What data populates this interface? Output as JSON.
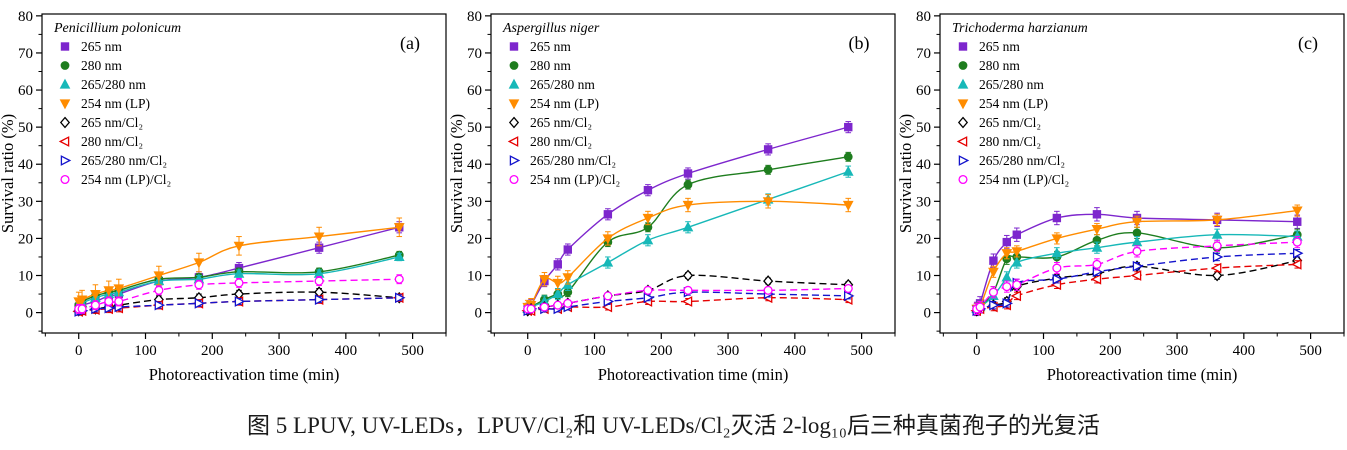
{
  "figure": {
    "caption": "图 5 LPUV, UV-LEDs，LPUV/Cl₂和 UV-LEDs/Cl₂灭活 2-log₁₀后三种真菌孢子的光复活"
  },
  "chart_data": [
    {
      "type": "scatter",
      "panel_label": "(a)",
      "legend_title": "Penicillium polonicum",
      "xlabel": "Photoreactivation time (min)",
      "ylabel": "Survival ratio (%)",
      "xlim": [
        -55,
        550
      ],
      "ylim": [
        -5.5,
        80.5
      ],
      "xticks": [
        0,
        100,
        200,
        300,
        400,
        500
      ],
      "yticks": [
        0,
        10,
        20,
        30,
        40,
        50,
        60,
        70,
        80
      ],
      "x_minor_step": 50,
      "y_minor_step": 5,
      "x": [
        0,
        5,
        25,
        45,
        60,
        120,
        180,
        240,
        360,
        480
      ],
      "series": [
        {
          "name": "265 nm",
          "color": "#7D26CD",
          "marker": "square",
          "line": "solid",
          "open": false,
          "err": 1.5,
          "values": [
            1.5,
            2,
            3,
            4.5,
            5,
            8.5,
            9.5,
            12,
            17.5,
            23
          ]
        },
        {
          "name": "280 nm",
          "color": "#1E7D1E",
          "marker": "circle",
          "line": "solid",
          "open": false,
          "err": 1.0,
          "values": [
            2,
            3,
            4.5,
            5.5,
            6,
            9,
            9.5,
            11,
            11,
            15.5
          ]
        },
        {
          "name": "265/280 nm",
          "color": "#17B8B8",
          "marker": "triangle-up",
          "line": "solid",
          "open": false,
          "err": 1.0,
          "values": [
            1.5,
            2.5,
            4,
            5,
            5.5,
            8.5,
            9,
            10.5,
            10.5,
            15
          ]
        },
        {
          "name": "254 nm (LP)",
          "color": "#FF8C00",
          "marker": "triangle-down",
          "line": "solid",
          "open": false,
          "err": 2.5,
          "values": [
            3,
            3.5,
            5,
            6,
            6.5,
            10,
            13.5,
            18,
            20.5,
            23
          ]
        },
        {
          "name": "265 nm/Cl₂",
          "color": "#000000",
          "marker": "diamond",
          "line": "dashed",
          "open": true,
          "err": 1.0,
          "values": [
            0.5,
            0.5,
            1,
            1.5,
            2,
            3.5,
            4,
            5,
            5.5,
            4
          ]
        },
        {
          "name": "280 nm/Cl₂",
          "color": "#E60000",
          "marker": "triangle-left",
          "line": "dashed",
          "open": true,
          "err": 1.0,
          "values": [
            0.3,
            0.5,
            0.8,
            1,
            1.2,
            2,
            2.5,
            3,
            3.5,
            4
          ]
        },
        {
          "name": "265/280 nm/Cl₂",
          "color": "#1414CC",
          "marker": "triangle-right",
          "line": "dashed",
          "open": true,
          "err": 0.8,
          "values": [
            0.3,
            0.5,
            1,
            1.2,
            1.5,
            2,
            2.5,
            3,
            3.5,
            4
          ]
        },
        {
          "name": "254 nm (LP)/Cl₂",
          "color": "#FF00FF",
          "marker": "circle",
          "line": "dashed",
          "open": true,
          "err": 1.2,
          "values": [
            1,
            1,
            2,
            3,
            3,
            6,
            7.5,
            8,
            8.5,
            9
          ]
        }
      ]
    },
    {
      "type": "scatter",
      "panel_label": "(b)",
      "legend_title": "Aspergillus niger",
      "xlabel": "Photoreactivation time (min)",
      "ylabel": "Survival ratio (%)",
      "xlim": [
        -55,
        550
      ],
      "ylim": [
        -5.5,
        80.5
      ],
      "xticks": [
        0,
        100,
        200,
        300,
        400,
        500
      ],
      "yticks": [
        0,
        10,
        20,
        30,
        40,
        50,
        60,
        70,
        80
      ],
      "x_minor_step": 50,
      "y_minor_step": 5,
      "x": [
        0,
        5,
        25,
        45,
        60,
        120,
        180,
        240,
        360,
        480
      ],
      "series": [
        {
          "name": "265 nm",
          "color": "#7D26CD",
          "marker": "square",
          "line": "solid",
          "open": false,
          "err": 1.5,
          "values": [
            1,
            2,
            8.5,
            13,
            17,
            26.5,
            33,
            37.5,
            44,
            50
          ]
        },
        {
          "name": "280 nm",
          "color": "#1E7D1E",
          "marker": "circle",
          "line": "solid",
          "open": false,
          "err": 1.2,
          "values": [
            1,
            1.5,
            3.5,
            5,
            5.5,
            19,
            23,
            34.5,
            38.5,
            42
          ]
        },
        {
          "name": "265/280 nm",
          "color": "#17B8B8",
          "marker": "triangle-up",
          "line": "solid",
          "open": false,
          "err": 1.5,
          "values": [
            1,
            1.5,
            3,
            5,
            7.5,
            13.5,
            19.5,
            23,
            30.5,
            38
          ]
        },
        {
          "name": "254 nm (LP)",
          "color": "#FF8C00",
          "marker": "triangle-down",
          "line": "solid",
          "open": false,
          "err": 1.8,
          "values": [
            1.5,
            2,
            9,
            8,
            9.5,
            20,
            25.5,
            29,
            30,
            29
          ]
        },
        {
          "name": "265 nm/Cl₂",
          "color": "#000000",
          "marker": "diamond",
          "line": "dashed",
          "open": true,
          "err": 0.8,
          "values": [
            0.5,
            1,
            1.5,
            2,
            2.5,
            4.5,
            6,
            10,
            8.5,
            7.5
          ]
        },
        {
          "name": "280 nm/Cl₂",
          "color": "#E60000",
          "marker": "triangle-left",
          "line": "dashed",
          "open": true,
          "err": 0.8,
          "values": [
            0.5,
            0.5,
            1,
            1,
            1.5,
            1.5,
            3,
            3,
            4,
            3.5
          ]
        },
        {
          "name": "265/280 nm/Cl₂",
          "color": "#1414CC",
          "marker": "triangle-right",
          "line": "dashed",
          "open": true,
          "err": 0.8,
          "values": [
            0.5,
            1,
            1,
            1,
            1.5,
            3,
            4,
            5.5,
            5,
            4.5
          ]
        },
        {
          "name": "254 nm (LP)/Cl₂",
          "color": "#FF00FF",
          "marker": "circle",
          "line": "dashed",
          "open": true,
          "err": 0.8,
          "values": [
            1,
            1,
            1.5,
            2,
            2.5,
            4.5,
            6,
            6,
            6,
            6.5
          ]
        }
      ]
    },
    {
      "type": "scatter",
      "panel_label": "(c)",
      "legend_title": "Trichoderma harzianum",
      "xlabel": "Photoreactivation time (min)",
      "ylabel": "Survival ratio (%)",
      "xlim": [
        -55,
        550
      ],
      "ylim": [
        -5.5,
        80.5
      ],
      "xticks": [
        0,
        100,
        200,
        300,
        400,
        500
      ],
      "yticks": [
        0,
        10,
        20,
        30,
        40,
        50,
        60,
        70,
        80
      ],
      "x_minor_step": 50,
      "y_minor_step": 5,
      "x": [
        0,
        5,
        25,
        45,
        60,
        120,
        180,
        240,
        360,
        480
      ],
      "series": [
        {
          "name": "265 nm",
          "color": "#7D26CD",
          "marker": "square",
          "line": "solid",
          "open": false,
          "err": 1.8,
          "values": [
            1,
            2.5,
            14,
            19,
            21,
            25.5,
            26.5,
            25.5,
            25,
            24.5
          ]
        },
        {
          "name": "280 nm",
          "color": "#1E7D1E",
          "marker": "circle",
          "line": "solid",
          "open": false,
          "err": 1.5,
          "values": [
            1,
            1.5,
            5.5,
            14.5,
            15,
            15,
            19.5,
            21.5,
            17.5,
            21
          ]
        },
        {
          "name": "265/280 nm",
          "color": "#17B8B8",
          "marker": "triangle-up",
          "line": "solid",
          "open": false,
          "err": 1.5,
          "values": [
            1,
            1.5,
            4.5,
            9.5,
            13.5,
            16,
            17.5,
            19,
            21,
            20.5
          ]
        },
        {
          "name": "254 nm (LP)",
          "color": "#FF8C00",
          "marker": "triangle-down",
          "line": "solid",
          "open": false,
          "err": 1.5,
          "values": [
            1,
            1.5,
            11,
            16,
            16.5,
            20,
            22.5,
            24.5,
            25,
            27.5
          ]
        },
        {
          "name": "265 nm/Cl₂",
          "color": "#000000",
          "marker": "diamond",
          "line": "dashed",
          "open": true,
          "err": 1.0,
          "values": [
            0.5,
            1,
            2,
            3,
            7,
            9.3,
            10.5,
            12.5,
            10,
            14
          ]
        },
        {
          "name": "280 nm/Cl₂",
          "color": "#E60000",
          "marker": "triangle-left",
          "line": "dashed",
          "open": true,
          "err": 1.0,
          "values": [
            0.5,
            1,
            1.5,
            2,
            4.5,
            7.5,
            9,
            10,
            12,
            13
          ]
        },
        {
          "name": "265/280 nm/Cl₂",
          "color": "#1414CC",
          "marker": "triangle-right",
          "line": "dashed",
          "open": true,
          "err": 1.0,
          "values": [
            0.5,
            1,
            2,
            2.5,
            8,
            9,
            11,
            12.5,
            15,
            16
          ]
        },
        {
          "name": "254 nm (LP)/Cl₂",
          "color": "#FF00FF",
          "marker": "circle",
          "line": "dashed",
          "open": true,
          "err": 1.5,
          "values": [
            1,
            1.5,
            5.5,
            7,
            7.5,
            12,
            13,
            16.5,
            18,
            19
          ]
        }
      ]
    }
  ]
}
